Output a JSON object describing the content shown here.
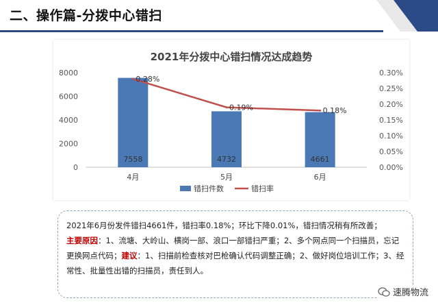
{
  "heading": "二、操作篇-分拨中心错扫",
  "chart_data": {
    "type": "bar",
    "title": "2021年分拨中心错扫情况达成趋势",
    "categories": [
      "4月",
      "5月",
      "6月"
    ],
    "series": [
      {
        "name": "错扫件数",
        "type": "bar",
        "axis": "left",
        "values": [
          7558,
          4732,
          4661
        ],
        "labels": [
          "7558",
          "4732",
          "4661"
        ],
        "color": "#4a79b5"
      },
      {
        "name": "错扫率",
        "type": "line",
        "axis": "right",
        "values": [
          0.28,
          0.19,
          0.18
        ],
        "labels": [
          "0.28%",
          "0.19%",
          "0.18%"
        ],
        "color": "#c0504d"
      }
    ],
    "y_left": {
      "range": [
        0,
        8000
      ],
      "ticks": [
        "0",
        "2000",
        "4000",
        "6000",
        "8000"
      ]
    },
    "y_right": {
      "range": [
        0,
        0.3
      ],
      "ticks": [
        "0.00%",
        "0.05%",
        "0.10%",
        "0.15%",
        "0.20%",
        "0.25%",
        "0.30%"
      ]
    },
    "legend_position": "bottom"
  },
  "summary": {
    "line1": "2021年6月份发件错扫4661件，错扫率0.18%；环比下降0.01%，错扫情况稍有所改善；",
    "cause_label": "主要原因",
    "cause_text": "：1、流塘、大岭山、横岗一部、浪口一部错扫严重；2、多个网点同一个扫描员，忘记更换网点代码；",
    "advice_label": "建议",
    "advice_text": "：1、扫描前检查核对巴枪确认代码调整正确；2、做好岗位培训工作；3、经常性、批量性出错的扫描员，责任到人。"
  },
  "watermark": {
    "text": "速腾物流",
    "icon": "wechat-icon"
  }
}
